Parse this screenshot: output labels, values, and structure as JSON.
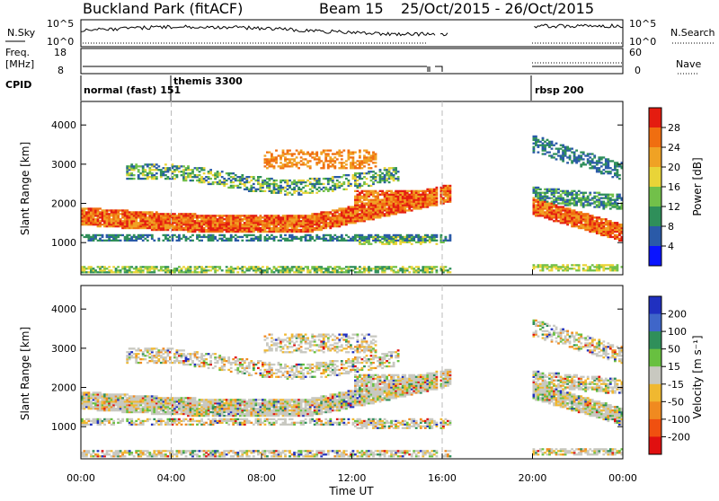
{
  "header": {
    "station": "Buckland Park (fitACF)",
    "beam": "Beam 15",
    "date_range": "25/Oct/2015 - 26/Oct/2015"
  },
  "summary_panels": {
    "nsky_label": "N.Sky",
    "nsky_ticks": [
      "10^5",
      "10^0"
    ],
    "nsearch_label": "N.Search",
    "nsearch_ticks": [
      "10^5",
      "10^0"
    ],
    "freq_label": "Freq.",
    "freq_unit": "[MHz]",
    "freq_ticks": [
      "18",
      "8"
    ],
    "nave_label": "Nave",
    "nave_ticks": [
      "60",
      "0"
    ],
    "cpid_label": "CPID",
    "cpid_segments": [
      {
        "name": "normal (fast) 151",
        "start_hour": 0
      },
      {
        "name": "themis 3300",
        "start_hour": 4
      },
      {
        "name": "rbsp 200",
        "start_hour": 20
      }
    ]
  },
  "chart_data": [
    {
      "type": "heatmap",
      "panel": "power",
      "ylabel": "Slant Range [km]",
      "xlabel": "Time UT",
      "xlim_hours": [
        0,
        24
      ],
      "ylim_km": [
        180,
        4600
      ],
      "y_ticks": [
        1000,
        2000,
        3000,
        4000
      ],
      "x_tick_labels": [
        "00:00",
        "04:00",
        "08:00",
        "12:00",
        "16:00",
        "20:00",
        "00:00"
      ],
      "colorbar_label": "Power [dB]",
      "colorbar_ticks": [
        4,
        8,
        12,
        16,
        20,
        24,
        28
      ],
      "colorbar_colors": [
        "#0a14ff",
        "#2a5aa8",
        "#2f8f5a",
        "#72c04a",
        "#e9d438",
        "#f0a224",
        "#f06e10",
        "#e41c10"
      ],
      "data_gaps_hours": [
        [
          15.7,
          15.85
        ],
        [
          16.3,
          20.0
        ]
      ]
    },
    {
      "type": "heatmap",
      "panel": "velocity",
      "ylabel": "Slant Range [km]",
      "xlabel": "Time UT",
      "xlim_hours": [
        0,
        24
      ],
      "ylim_km": [
        180,
        4600
      ],
      "y_ticks": [
        1000,
        2000,
        3000,
        4000
      ],
      "x_tick_labels": [
        "00:00",
        "04:00",
        "08:00",
        "12:00",
        "16:00",
        "20:00",
        "00:00"
      ],
      "colorbar_label": "Velocity [m s⁻¹]",
      "colorbar_ticks": [
        200,
        100,
        50,
        15,
        -15,
        -50,
        -100,
        -200
      ],
      "colorbar_colors": [
        "#2030c0",
        "#3f66c9",
        "#2f8f5a",
        "#68c040",
        "#c8c8c0",
        "#f0b830",
        "#f08a20",
        "#f05010",
        "#e01010"
      ],
      "data_gaps_hours": [
        [
          15.7,
          15.85
        ],
        [
          16.3,
          20.0
        ]
      ]
    }
  ]
}
